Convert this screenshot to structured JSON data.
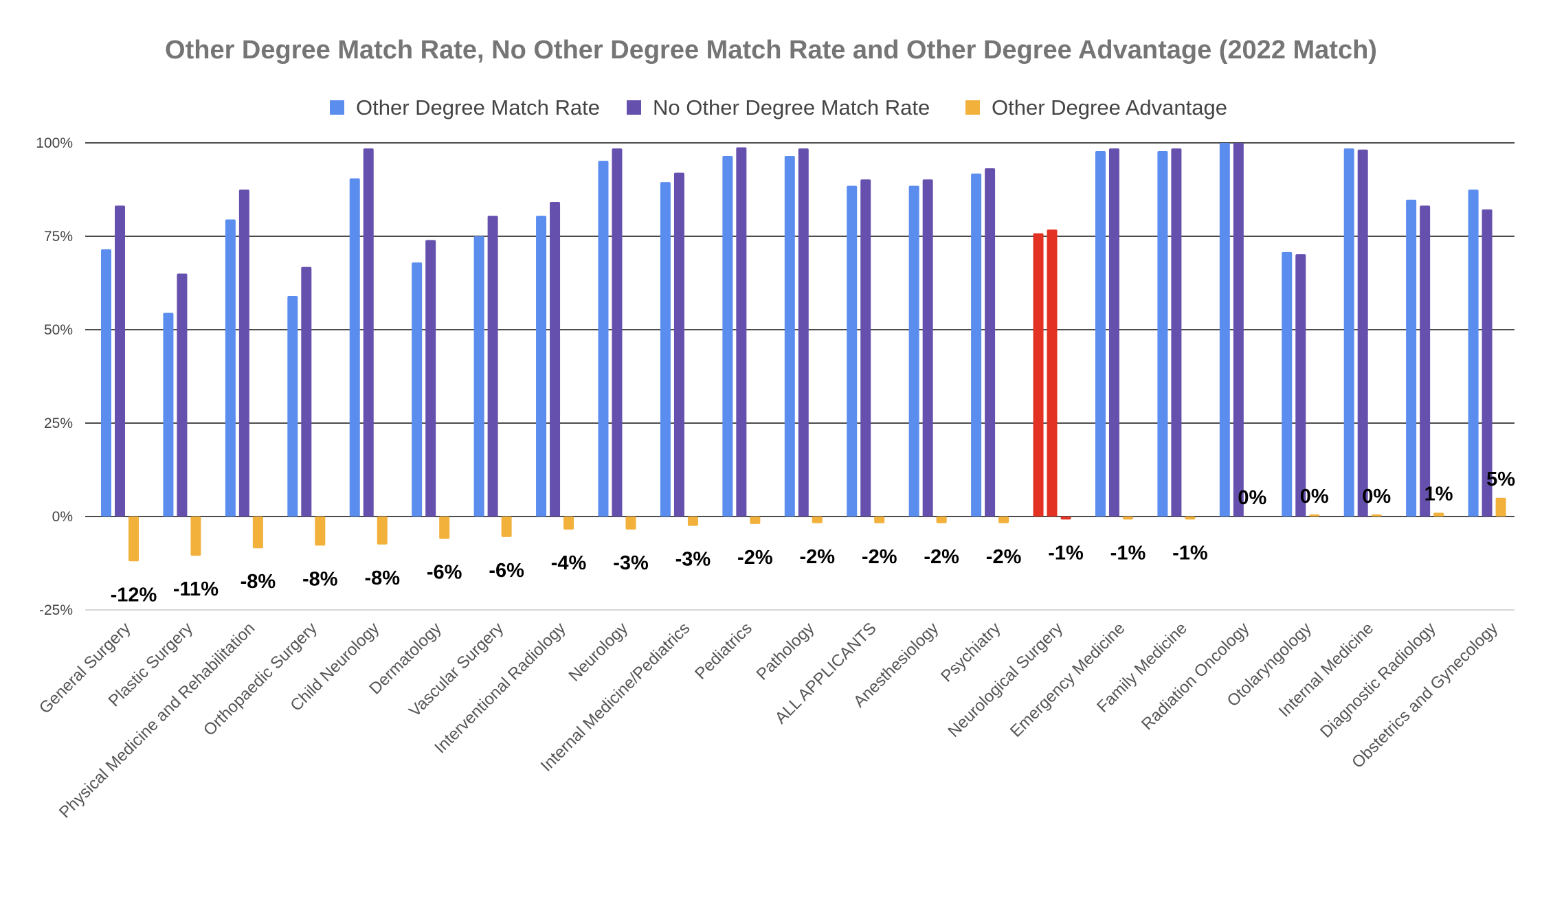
{
  "chart_data": {
    "type": "bar",
    "title": "Other Degree Match Rate, No Other Degree Match Rate and Other Degree Advantage (2022 Match)",
    "xlabel": "",
    "ylabel": "",
    "ylim": [
      -0.25,
      1.0
    ],
    "yticks": [
      {
        "value": 1.0,
        "label": "100%"
      },
      {
        "value": 0.75,
        "label": "75%"
      },
      {
        "value": 0.5,
        "label": "50%"
      },
      {
        "value": 0.25,
        "label": "25%"
      },
      {
        "value": 0.0,
        "label": "0%"
      },
      {
        "value": -0.25,
        "label": "-25%"
      }
    ],
    "grid": true,
    "legend_position": "top",
    "categories": [
      "General Surgery",
      "Plastic Surgery",
      "Physical Medicine and Rehabilitation",
      "Orthopaedic Surgery",
      "Child Neurology",
      "Dermatology",
      "Vascular Surgery",
      "Interventional Radiology",
      "Neurology",
      "Internal Medicine/Pediatrics",
      "Pediatrics",
      "Pathology",
      "ALL APPLICANTS",
      "Anesthesiology",
      "Psychiatry",
      "Neurological Surgery",
      "Emergency Medicine",
      "Family Medicine",
      "Radiation Oncology",
      "Otolaryngology",
      "Internal Medicine",
      "Diagnostic Radiology",
      "Obstetrics and Gynecology"
    ],
    "highlight_category_index": 15,
    "highlight_color": "#e33224",
    "series": [
      {
        "name": "Other Degree Match Rate",
        "color": "#5b8def",
        "values": [
          0.715,
          0.545,
          0.795,
          0.59,
          0.905,
          0.68,
          0.75,
          0.805,
          0.952,
          0.895,
          0.965,
          0.965,
          0.885,
          0.885,
          0.918,
          0.758,
          0.978,
          0.978,
          1.0,
          0.708,
          0.985,
          0.848,
          0.875
        ]
      },
      {
        "name": "No Other Degree Match Rate",
        "color": "#6650ad",
        "values": [
          0.832,
          0.65,
          0.875,
          0.668,
          0.985,
          0.74,
          0.805,
          0.842,
          0.985,
          0.92,
          0.988,
          0.985,
          0.902,
          0.902,
          0.932,
          0.768,
          0.985,
          0.985,
          1.0,
          0.702,
          0.982,
          0.832,
          0.822
        ]
      },
      {
        "name": "Other Degree Advantage",
        "color": "#f1b13b",
        "values": [
          -0.12,
          -0.105,
          -0.085,
          -0.078,
          -0.075,
          -0.06,
          -0.055,
          -0.035,
          -0.035,
          -0.025,
          -0.02,
          -0.018,
          -0.018,
          -0.018,
          -0.018,
          -0.008,
          -0.008,
          -0.008,
          0.0,
          0.004,
          0.004,
          0.01,
          0.05
        ],
        "labels": [
          "-12%",
          "-11%",
          "-8%",
          "-8%",
          "-8%",
          "-6%",
          "-6%",
          "-4%",
          "-3%",
          "-3%",
          "-2%",
          "-2%",
          "-2%",
          "-2%",
          "-2%",
          "-1%",
          "-1%",
          "-1%",
          "0%",
          "0%",
          "0%",
          "1%",
          "5%"
        ]
      }
    ]
  }
}
